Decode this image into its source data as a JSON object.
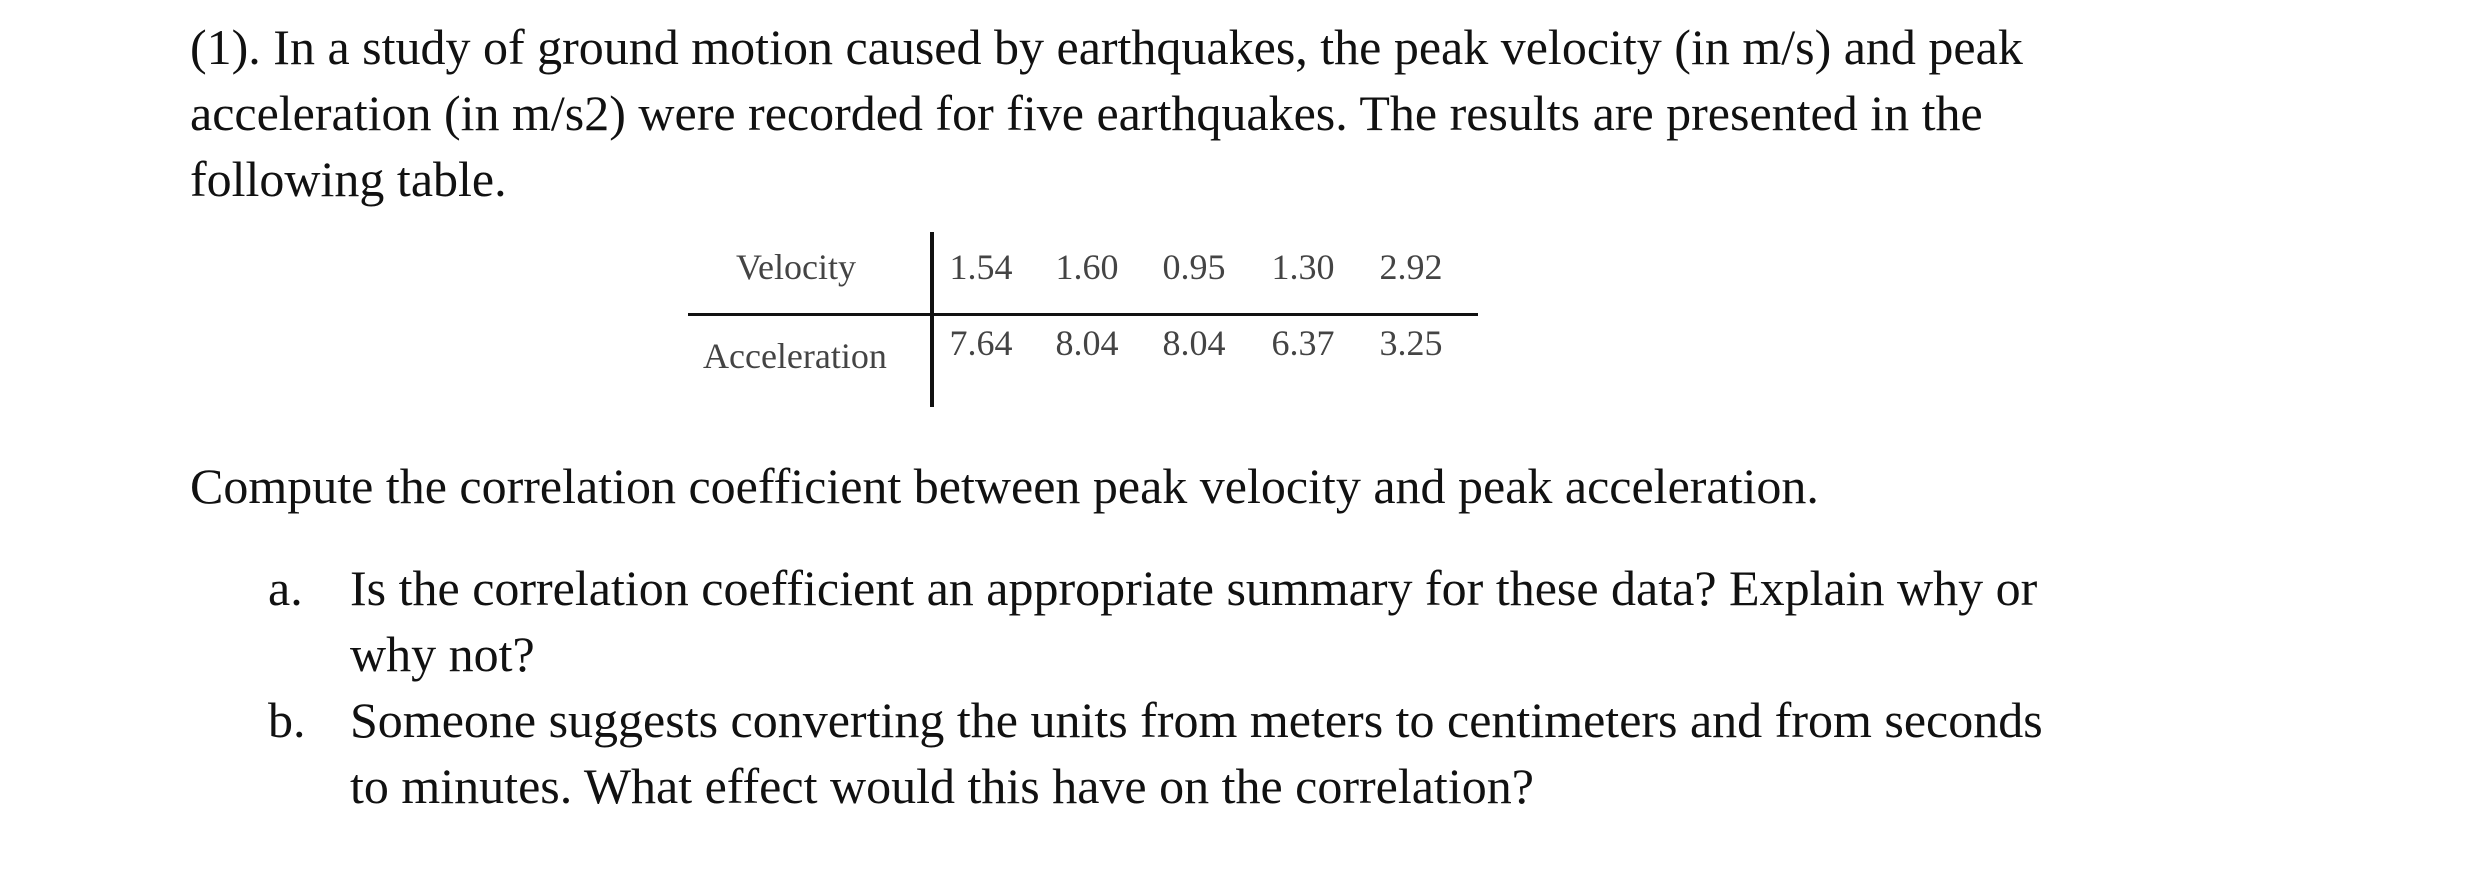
{
  "intro": {
    "lines": [
      "(1). In a study of ground motion caused by earthquakes, the peak velocity (in m/s) and peak",
      "acceleration (in m/s2) were recorded for five earthquakes. The results are presented in the",
      "following table."
    ]
  },
  "table": {
    "rows": [
      {
        "label": "Velocity",
        "values": [
          "1.54",
          "1.60",
          "0.95",
          "1.30",
          "2.92"
        ]
      },
      {
        "label": "Acceleration",
        "values": [
          "7.64",
          "8.04",
          "8.04",
          "6.37",
          "3.25"
        ]
      }
    ]
  },
  "question": "Compute the correlation coefficient between peak velocity and peak acceleration.",
  "parts": [
    {
      "marker": "a.",
      "lines": [
        "Is the correlation coefficient an appropriate summary for these data? Explain why or",
        "why not?"
      ]
    },
    {
      "marker": "b.",
      "lines": [
        "Someone suggests converting the units from meters to centimeters and from seconds",
        "to minutes. What effect would this have on the correlation?"
      ]
    }
  ]
}
